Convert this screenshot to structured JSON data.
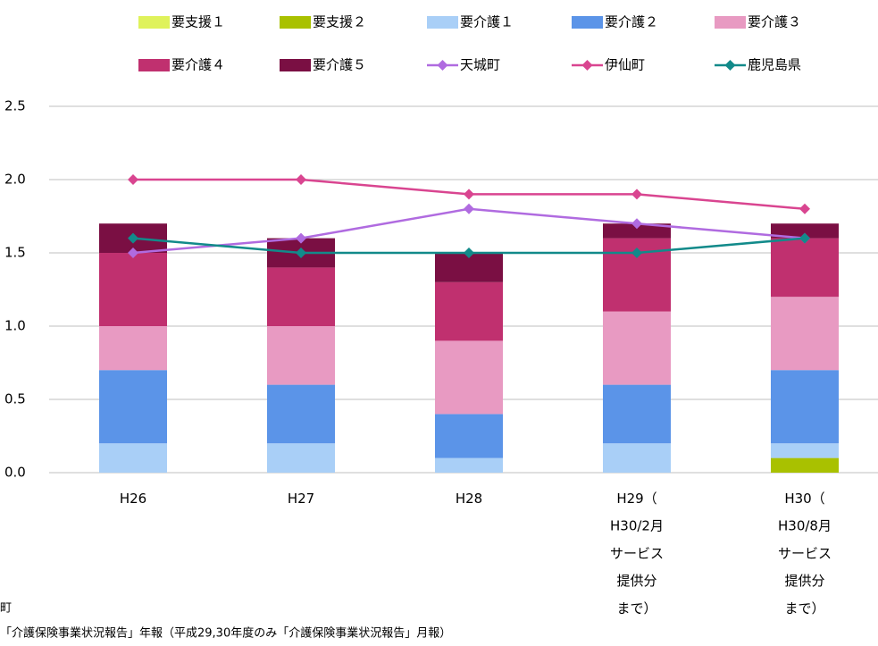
{
  "chart_data": {
    "type": "bar",
    "categories": [
      "H26",
      "H27",
      "H28",
      "H29（\nH30/2月\nサービス\n提供分\nまで）",
      "H30（\nH30/8月\nサービス\n提供分\nまで）"
    ],
    "series": [
      {
        "name": "要支援１",
        "type": "bar",
        "color": "#dff25b",
        "values": [
          0,
          0,
          0,
          0,
          0
        ]
      },
      {
        "name": "要支援２",
        "type": "bar",
        "color": "#a9c100",
        "values": [
          0,
          0,
          0,
          0,
          0.1
        ]
      },
      {
        "name": "要介護１",
        "type": "bar",
        "color": "#a9cff7",
        "values": [
          0.2,
          0.2,
          0.1,
          0.2,
          0.1
        ]
      },
      {
        "name": "要介護２",
        "type": "bar",
        "color": "#5b94e8",
        "values": [
          0.5,
          0.4,
          0.3,
          0.4,
          0.5
        ]
      },
      {
        "name": "要介護３",
        "type": "bar",
        "color": "#e89ac2",
        "values": [
          0.3,
          0.4,
          0.5,
          0.5,
          0.5
        ]
      },
      {
        "name": "要介護４",
        "type": "bar",
        "color": "#c0306f",
        "values": [
          0.5,
          0.4,
          0.4,
          0.5,
          0.4
        ]
      },
      {
        "name": "要介護５",
        "type": "bar",
        "color": "#7a0f43",
        "values": [
          0.2,
          0.2,
          0.2,
          0.1,
          0.1
        ]
      },
      {
        "name": "天城町",
        "type": "line",
        "color": "#b06be0",
        "values": [
          1.5,
          1.6,
          1.8,
          1.7,
          1.6
        ]
      },
      {
        "name": "伊仙町",
        "type": "line",
        "color": "#d94590",
        "values": [
          2.0,
          2.0,
          1.9,
          1.9,
          1.8
        ]
      },
      {
        "name": "鹿児島県",
        "type": "line",
        "color": "#128a8a",
        "values": [
          1.6,
          1.5,
          1.5,
          1.5,
          1.6
        ]
      }
    ],
    "ylim": [
      0,
      2.5
    ],
    "yticks": [
      {
        "value": 0,
        "label": "0.0"
      },
      0.5,
      {
        "value": 1,
        "label": "1.0"
      },
      1.5,
      {
        "value": 2,
        "label": "2.0"
      },
      2.5
    ],
    "grid": true,
    "notes": [
      "町",
      "「介護保険事業状況報告」年報（平成29,30年度のみ「介護保険事業状況報告」月報）"
    ]
  }
}
